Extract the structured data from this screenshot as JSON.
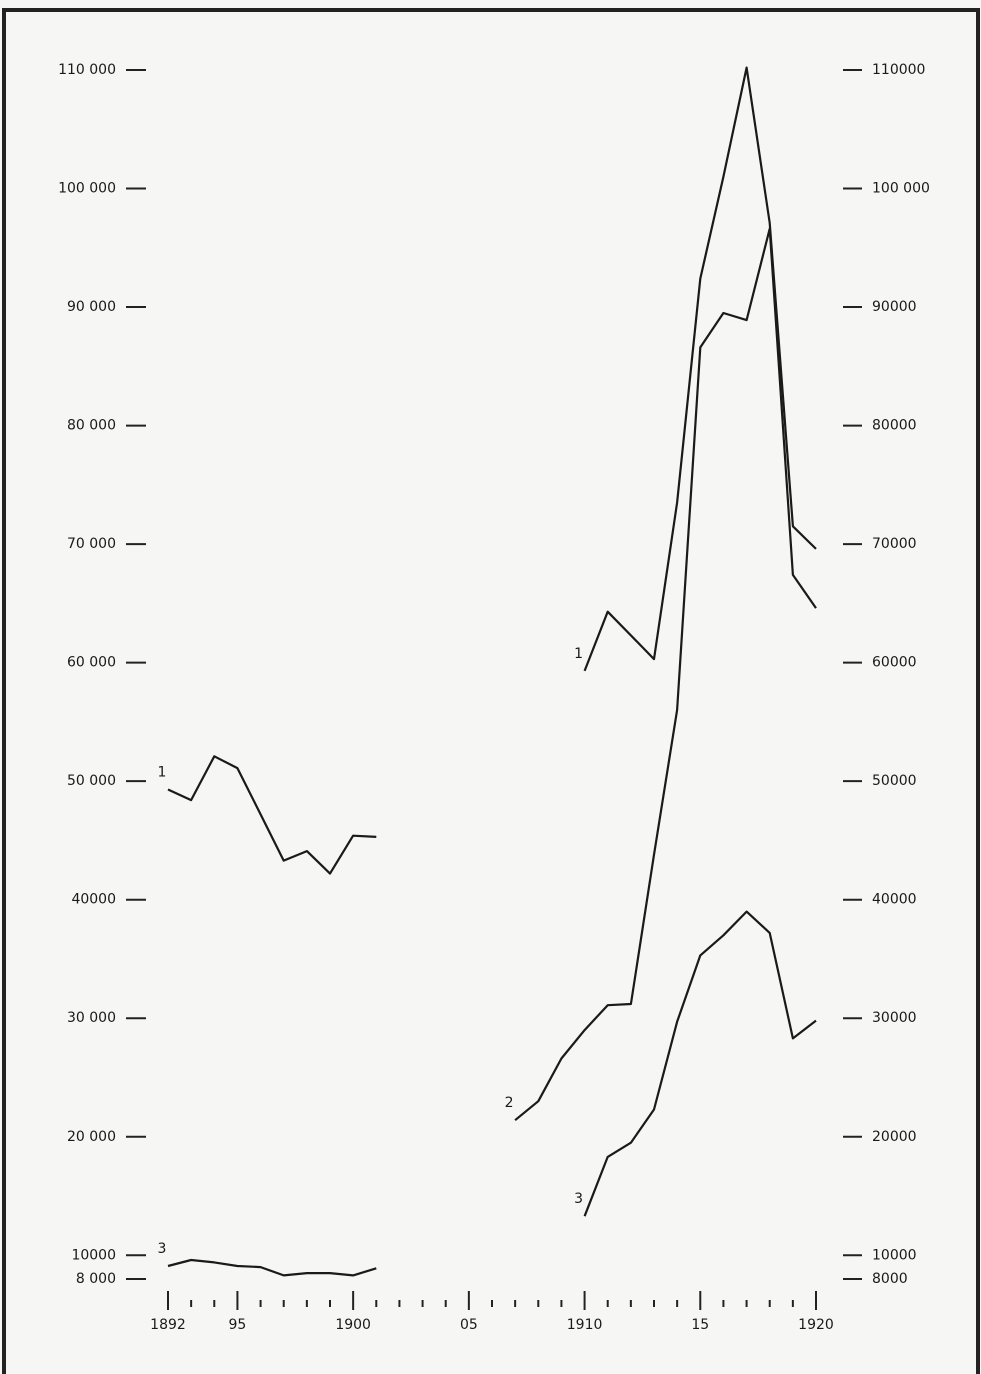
{
  "chart_data": {
    "type": "line",
    "x": [
      1892,
      1893,
      1894,
      1895,
      1896,
      1897,
      1898,
      1899,
      1900,
      1901,
      1902,
      1903,
      1904,
      1905,
      1906,
      1907,
      1908,
      1909,
      1910,
      1911,
      1912,
      1913,
      1914,
      1915,
      1916,
      1917,
      1918,
      1919,
      1920
    ],
    "series": [
      {
        "name": "1",
        "color": "#1a1a1a",
        "values": [
          49300,
          48400,
          52100,
          51100,
          47200,
          43300,
          44100,
          42200,
          45400,
          45300,
          null,
          null,
          null,
          null,
          null,
          null,
          null,
          null,
          59300,
          64300,
          62300,
          60300,
          73500,
          92400,
          101000,
          110200,
          97100,
          71500,
          69600
        ]
      },
      {
        "name": "2",
        "color": "#1a1a1a",
        "values": [
          null,
          null,
          null,
          null,
          null,
          null,
          null,
          null,
          null,
          null,
          null,
          null,
          null,
          null,
          null,
          21400,
          23000,
          26600,
          29000,
          31100,
          31200,
          43800,
          56000,
          86600,
          89500,
          88900,
          96600,
          67400,
          64600
        ]
      },
      {
        "name": "3",
        "color": "#1a1a1a",
        "values": [
          9100,
          9600,
          9400,
          9100,
          9000,
          8300,
          8500,
          8500,
          8300,
          8900,
          null,
          null,
          null,
          null,
          null,
          null,
          null,
          null,
          13300,
          18300,
          19500,
          22300,
          29700,
          35300,
          37000,
          39000,
          37200,
          28300,
          29800
        ]
      }
    ],
    "xlim": [
      1892,
      1920
    ],
    "xticks": [
      1892,
      {
        "value": 1895,
        "label": "95"
      },
      1900,
      {
        "value": 1905,
        "label": "05"
      },
      1910,
      {
        "value": 1915,
        "label": "15"
      },
      1920
    ],
    "xminorticks": [
      1893,
      1894,
      1896,
      1897,
      1898,
      1899,
      1901,
      1902,
      1903,
      1904,
      1906,
      1907,
      1908,
      1909,
      1911,
      1912,
      1913,
      1914,
      1916,
      1917,
      1918,
      1919
    ],
    "ylim": [
      8000,
      110000
    ],
    "yticks": [
      {
        "value": 8000,
        "label": "8 000"
      },
      10000,
      {
        "value": 20000,
        "label": "20 000"
      },
      {
        "value": 30000,
        "label": "30 000"
      },
      40000,
      {
        "value": 50000,
        "label": "50 000"
      },
      {
        "value": 60000,
        "label": "60 000"
      },
      {
        "value": 70000,
        "label": "70 000"
      },
      {
        "value": 80000,
        "label": "80 000"
      },
      {
        "value": 90000,
        "label": "90 000"
      },
      {
        "value": 100000,
        "label": "100 000"
      },
      {
        "value": 110000,
        "label": "110 000"
      }
    ],
    "y2lim": [
      8000,
      110000
    ],
    "y2ticks": [
      8000,
      10000,
      20000,
      30000,
      40000,
      50000,
      60000,
      70000,
      80000,
      90000,
      {
        "value": 100000,
        "label": "100 000"
      },
      110000
    ]
  }
}
